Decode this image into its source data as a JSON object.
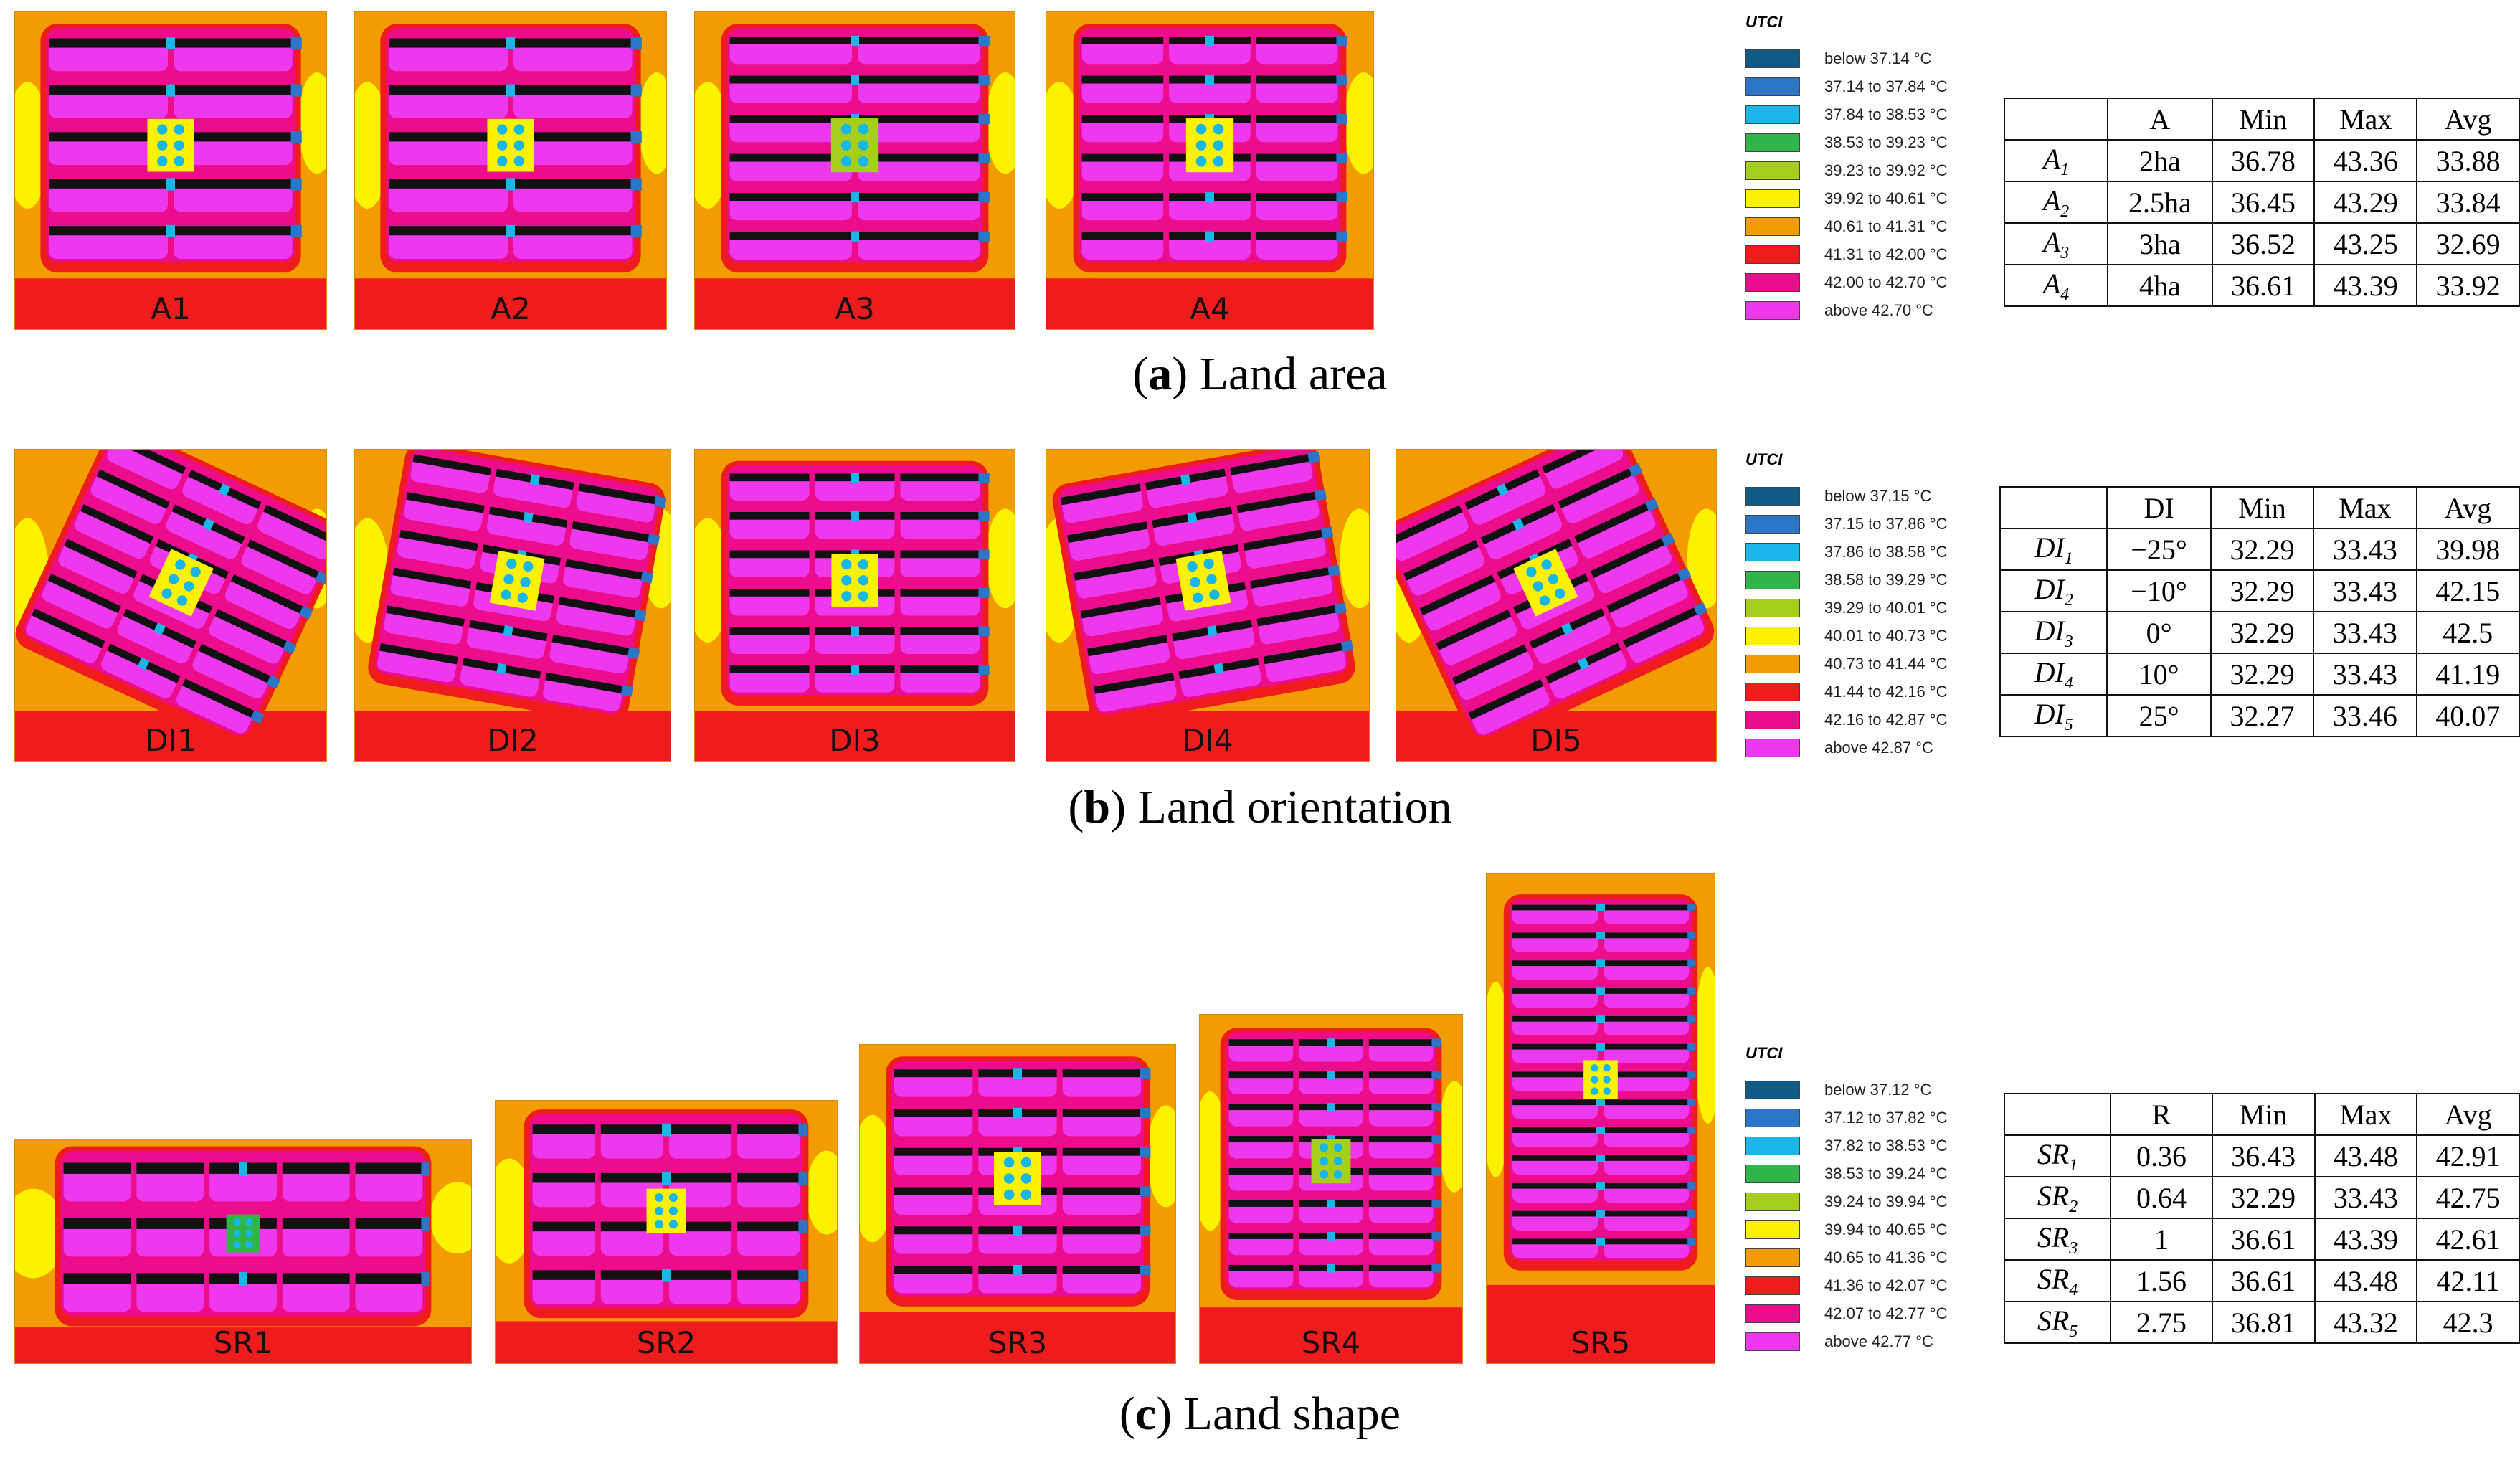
{
  "groups": [
    {
      "id": "a",
      "caption_letter": "a",
      "caption_text": ") Land area",
      "legend": {
        "title": "UTCI",
        "items": [
          {
            "label": "below 37.14 °C",
            "color": "#0f5b86"
          },
          {
            "label": "37.14 to 37.84 °C",
            "color": "#2b76c8"
          },
          {
            "label": "37.84 to 38.53 °C",
            "color": "#19b6e8"
          },
          {
            "label": "38.53 to 39.23 °C",
            "color": "#2fb548"
          },
          {
            "label": "39.23 to 39.92 °C",
            "color": "#a6cf1c"
          },
          {
            "label": "39.92 to 40.61 °C",
            "color": "#fbf200"
          },
          {
            "label": "40.61 to 41.31 °C",
            "color": "#f39c00"
          },
          {
            "label": "41.31 to 42.00 °C",
            "color": "#ee1c1c"
          },
          {
            "label": "42.00 to 42.70 °C",
            "color": "#ec0c8c"
          },
          {
            "label": "above 42.70 °C",
            "color": "#ee38ee"
          }
        ]
      },
      "table": {
        "headers": [
          "",
          "A",
          "Min",
          "Max",
          "Avg"
        ],
        "rows": [
          {
            "name": "A",
            "sub": "1",
            "param": "2ha",
            "min": "36.78",
            "max": "43.36",
            "avg": "33.88"
          },
          {
            "name": "A",
            "sub": "2",
            "param": "2.5ha",
            "min": "36.45",
            "max": "43.29",
            "avg": "33.84"
          },
          {
            "name": "A",
            "sub": "3",
            "param": "3ha",
            "min": "36.52",
            "max": "43.25",
            "avg": "32.69"
          },
          {
            "name": "A",
            "sub": "4",
            "param": "4ha",
            "min": "36.61",
            "max": "43.39",
            "avg": "33.92"
          }
        ]
      },
      "panels": [
        {
          "label": "A1",
          "rows": 5,
          "cols": 2,
          "rot": 0,
          "court": "#fbf200"
        },
        {
          "label": "A2",
          "rows": 5,
          "cols": 2,
          "rot": 0,
          "court": "#fbf200"
        },
        {
          "label": "A3",
          "rows": 6,
          "cols": 2,
          "rot": 0,
          "court": "#a6cf1c"
        },
        {
          "label": "A4",
          "rows": 6,
          "cols": 3,
          "rot": 0,
          "court": "#fbf200"
        }
      ]
    },
    {
      "id": "b",
      "caption_letter": "b",
      "caption_text": ") Land orientation",
      "legend": {
        "title": "UTCI",
        "items": [
          {
            "label": "below 37.15 °C",
            "color": "#0f5b86"
          },
          {
            "label": "37.15 to 37.86 °C",
            "color": "#2b76c8"
          },
          {
            "label": "37.86 to 38.58 °C",
            "color": "#19b6e8"
          },
          {
            "label": "38.58 to 39.29 °C",
            "color": "#2fb548"
          },
          {
            "label": "39.29 to 40.01 °C",
            "color": "#a6cf1c"
          },
          {
            "label": "40.01 to 40.73 °C",
            "color": "#fbf200"
          },
          {
            "label": "40.73 to 41.44 °C",
            "color": "#f39c00"
          },
          {
            "label": "41.44 to 42.16 °C",
            "color": "#ee1c1c"
          },
          {
            "label": "42.16 to 42.87 °C",
            "color": "#ec0c8c"
          },
          {
            "label": "above 42.87 °C",
            "color": "#ee38ee"
          }
        ]
      },
      "table": {
        "headers": [
          "",
          "DI",
          "Min",
          "Max",
          "Avg"
        ],
        "rows": [
          {
            "name": "DI",
            "sub": "1",
            "param": "−25°",
            "min": "32.29",
            "max": "33.43",
            "avg": "39.98"
          },
          {
            "name": "DI",
            "sub": "2",
            "param": "−10°",
            "min": "32.29",
            "max": "33.43",
            "avg": "42.15"
          },
          {
            "name": "DI",
            "sub": "3",
            "param": "0°",
            "min": "32.29",
            "max": "33.43",
            "avg": "42.5"
          },
          {
            "name": "DI",
            "sub": "4",
            "param": "10°",
            "min": "32.29",
            "max": "33.43",
            "avg": "41.19"
          },
          {
            "name": "DI",
            "sub": "5",
            "param": "25°",
            "min": "32.27",
            "max": "33.46",
            "avg": "40.07"
          }
        ]
      },
      "panels": [
        {
          "label": "DI1",
          "rows": 6,
          "cols": 3,
          "rot": 25,
          "court": "#fbf200"
        },
        {
          "label": "DI2",
          "rows": 6,
          "cols": 3,
          "rot": 10,
          "court": "#fbf200"
        },
        {
          "label": "DI3",
          "rows": 6,
          "cols": 3,
          "rot": 0,
          "court": "#fbf200"
        },
        {
          "label": "DI4",
          "rows": 6,
          "cols": 3,
          "rot": -10,
          "court": "#fbf200"
        },
        {
          "label": "DI5",
          "rows": 6,
          "cols": 3,
          "rot": -25,
          "court": "#fbf200"
        }
      ]
    },
    {
      "id": "c",
      "caption_letter": "c",
      "caption_text": ") Land shape",
      "legend": {
        "title": "UTCI",
        "items": [
          {
            "label": "below 37.12 °C",
            "color": "#0f5b86"
          },
          {
            "label": "37.12 to 37.82 °C",
            "color": "#2b76c8"
          },
          {
            "label": "37.82 to 38.53 °C",
            "color": "#19b6e8"
          },
          {
            "label": "38.53 to 39.24 °C",
            "color": "#2fb548"
          },
          {
            "label": "39.24 to 39.94 °C",
            "color": "#a6cf1c"
          },
          {
            "label": "39.94 to 40.65 °C",
            "color": "#fbf200"
          },
          {
            "label": "40.65 to 41.36 °C",
            "color": "#f39c00"
          },
          {
            "label": "41.36 to 42.07 °C",
            "color": "#ee1c1c"
          },
          {
            "label": "42.07 to 42.77 °C",
            "color": "#ec0c8c"
          },
          {
            "label": "above 42.77 °C",
            "color": "#ee38ee"
          }
        ]
      },
      "table": {
        "headers": [
          "",
          "R",
          "Min",
          "Max",
          "Avg"
        ],
        "rows": [
          {
            "name": "SR",
            "sub": "1",
            "param": "0.36",
            "min": "36.43",
            "max": "43.48",
            "avg": "42.91"
          },
          {
            "name": "SR",
            "sub": "2",
            "param": "0.64",
            "min": "32.29",
            "max": "33.43",
            "avg": "42.75"
          },
          {
            "name": "SR",
            "sub": "3",
            "param": "1",
            "min": "36.61",
            "max": "43.39",
            "avg": "42.61"
          },
          {
            "name": "SR",
            "sub": "4",
            "param": "1.56",
            "min": "36.61",
            "max": "43.48",
            "avg": "42.11"
          },
          {
            "name": "SR",
            "sub": "5",
            "param": "2.75",
            "min": "36.81",
            "max": "43.32",
            "avg": "42.3"
          }
        ]
      },
      "panels": [
        {
          "label": "SR1",
          "rows": 3,
          "cols": 5,
          "rot": 0,
          "court": "#2fb548"
        },
        {
          "label": "SR2",
          "rows": 4,
          "cols": 4,
          "rot": 0,
          "court": "#fbf200"
        },
        {
          "label": "SR3",
          "rows": 6,
          "cols": 3,
          "rot": 0,
          "court": "#fbf200"
        },
        {
          "label": "SR4",
          "rows": 8,
          "cols": 3,
          "rot": 0,
          "court": "#a6cf1c"
        },
        {
          "label": "SR5",
          "rows": 13,
          "cols": 2,
          "rot": 0,
          "court": "#fbf200"
        }
      ]
    }
  ]
}
